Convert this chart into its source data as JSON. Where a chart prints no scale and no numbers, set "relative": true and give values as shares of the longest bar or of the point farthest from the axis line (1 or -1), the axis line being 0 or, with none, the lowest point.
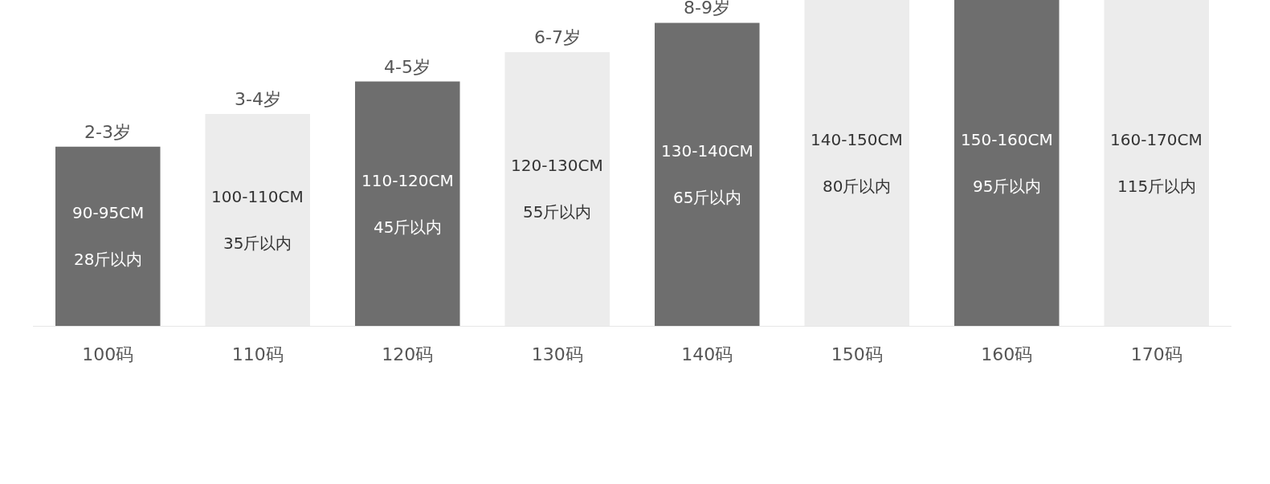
{
  "chart_data": {
    "type": "bar",
    "relative": true,
    "categories": [
      "100码",
      "110码",
      "120码",
      "130码",
      "140码",
      "150码",
      "160码",
      "170码"
    ],
    "values": [
      0.55,
      0.65,
      0.75,
      0.84,
      0.93,
      1,
      1,
      1
    ],
    "colors": [
      "#6e6e6e",
      "#ececec",
      "#6e6e6e",
      "#ececec",
      "#6e6e6e",
      "#ececec",
      "#6e6e6e",
      "#ececec"
    ],
    "annotations": [
      {
        "text": "2-3岁",
        "x": "100码",
        "y": 0.55
      },
      {
        "text": "3-4岁",
        "x": "110码",
        "y": 0.65
      },
      {
        "text": "4-5岁",
        "x": "120码",
        "y": 0.75
      },
      {
        "text": "6-7岁",
        "x": "130码",
        "y": 0.84
      },
      {
        "text": "8-9岁",
        "x": "140码",
        "y": 0.93
      },
      "90-95CM",
      "28斤以内",
      "100-110CM",
      "35斤以内",
      "110-120CM",
      "45斤以内",
      "120-130CM",
      "55斤以内",
      "130-140CM",
      "65斤以内",
      "140-150CM",
      "80斤以内",
      "150-160CM",
      "95斤以内",
      "160-170CM",
      "115斤以内"
    ]
  }
}
